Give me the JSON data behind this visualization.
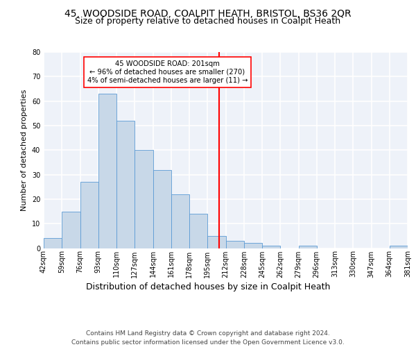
{
  "title1": "45, WOODSIDE ROAD, COALPIT HEATH, BRISTOL, BS36 2QR",
  "title2": "Size of property relative to detached houses in Coalpit Heath",
  "xlabel": "Distribution of detached houses by size in Coalpit Heath",
  "ylabel": "Number of detached properties",
  "footnote": "Contains HM Land Registry data © Crown copyright and database right 2024.\nContains public sector information licensed under the Open Government Licence v3.0.",
  "bin_labels": [
    "42sqm",
    "59sqm",
    "76sqm",
    "93sqm",
    "110sqm",
    "127sqm",
    "144sqm",
    "161sqm",
    "178sqm",
    "195sqm",
    "212sqm",
    "228sqm",
    "245sqm",
    "262sqm",
    "279sqm",
    "296sqm",
    "313sqm",
    "330sqm",
    "347sqm",
    "364sqm",
    "381sqm"
  ],
  "bar_heights": [
    4,
    15,
    27,
    63,
    52,
    40,
    32,
    22,
    14,
    5,
    3,
    2,
    1,
    0,
    1,
    0,
    0,
    0,
    0,
    1
  ],
  "bar_color": "#c8d8e8",
  "bar_edgecolor": "#5b9bd5",
  "vline_x": 9.65,
  "annotation_text": "45 WOODSIDE ROAD: 201sqm\n← 96% of detached houses are smaller (270)\n4% of semi-detached houses are larger (11) →",
  "box_color": "white",
  "box_edgecolor": "red",
  "vline_color": "red",
  "ylim": [
    0,
    80
  ],
  "yticks": [
    0,
    10,
    20,
    30,
    40,
    50,
    60,
    70,
    80
  ],
  "bg_color": "#eef2f9",
  "grid_color": "white",
  "title1_fontsize": 10,
  "title2_fontsize": 9,
  "xlabel_fontsize": 9,
  "ylabel_fontsize": 8,
  "footnote_fontsize": 6.5,
  "tick_fontsize": 7
}
